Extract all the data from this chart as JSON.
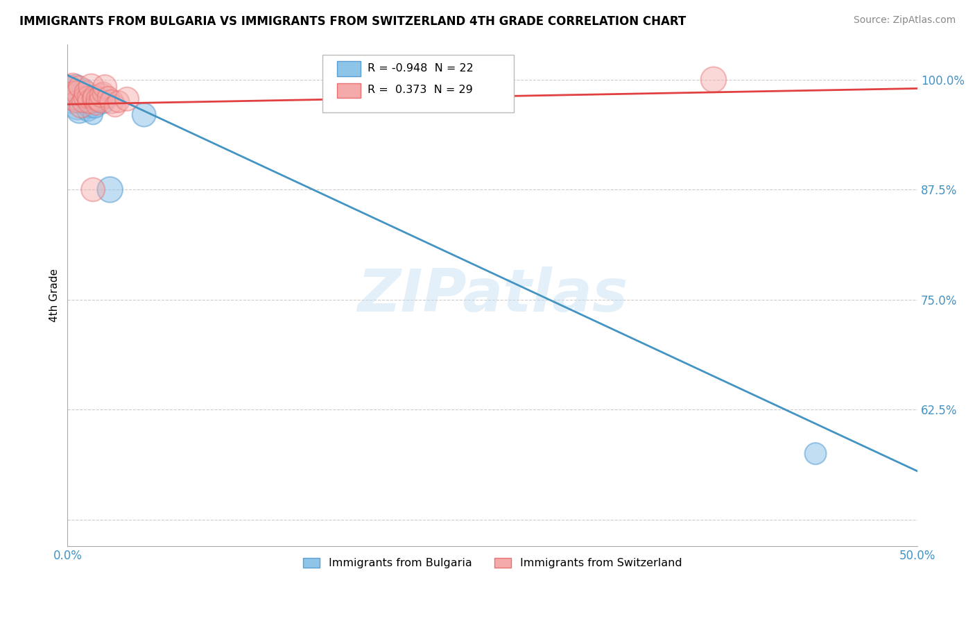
{
  "title": "IMMIGRANTS FROM BULGARIA VS IMMIGRANTS FROM SWITZERLAND 4TH GRADE CORRELATION CHART",
  "source": "Source: ZipAtlas.com",
  "ylabel": "4th Grade",
  "y_ticks": [
    0.5,
    0.625,
    0.75,
    0.875,
    1.0
  ],
  "y_tick_labels": [
    "",
    "62.5%",
    "75.0%",
    "87.5%",
    "100.0%"
  ],
  "xlim": [
    0.0,
    0.5
  ],
  "ylim": [
    0.47,
    1.04
  ],
  "legend_blue_label": "Immigrants from Bulgaria",
  "legend_pink_label": "Immigrants from Switzerland",
  "R_blue": -0.948,
  "N_blue": 22,
  "R_pink": 0.373,
  "N_pink": 29,
  "blue_color": "#8ec4e8",
  "pink_color": "#f4aaaa",
  "blue_edge_color": "#5a9fd4",
  "pink_edge_color": "#e87070",
  "blue_line_color": "#4393c3",
  "pink_line_color": "#e04040",
  "watermark": "ZIPatlas",
  "blue_line_x0": 0.0,
  "blue_line_y0": 1.005,
  "blue_line_x1": 0.5,
  "blue_line_y1": 0.555,
  "pink_line_x0": 0.0,
  "pink_line_y0": 0.972,
  "pink_line_x1": 0.5,
  "pink_line_y1": 0.99,
  "blue_scatter_x": [
    0.001,
    0.002,
    0.003,
    0.004,
    0.005,
    0.006,
    0.007,
    0.008,
    0.009,
    0.01,
    0.011,
    0.012,
    0.013,
    0.014,
    0.015,
    0.016,
    0.017,
    0.018,
    0.021,
    0.025,
    0.045,
    0.44
  ],
  "blue_scatter_y": [
    0.99,
    0.985,
    0.975,
    0.98,
    0.995,
    0.97,
    0.965,
    0.975,
    0.985,
    0.99,
    0.975,
    0.965,
    0.97,
    0.975,
    0.96,
    0.97,
    0.975,
    0.98,
    0.975,
    0.875,
    0.96,
    0.575
  ],
  "blue_scatter_sizes": [
    600,
    500,
    600,
    500,
    400,
    800,
    700,
    600,
    500,
    400,
    600,
    500,
    600,
    500,
    400,
    600,
    500,
    400,
    600,
    700,
    600,
    500
  ],
  "pink_scatter_x": [
    0.001,
    0.002,
    0.003,
    0.004,
    0.005,
    0.006,
    0.007,
    0.008,
    0.009,
    0.01,
    0.011,
    0.012,
    0.013,
    0.014,
    0.015,
    0.016,
    0.017,
    0.018,
    0.019,
    0.02,
    0.021,
    0.022,
    0.024,
    0.026,
    0.028,
    0.03,
    0.035,
    0.38,
    0.015
  ],
  "pink_scatter_y": [
    0.992,
    0.98,
    0.995,
    0.985,
    0.975,
    0.985,
    0.992,
    0.97,
    0.975,
    0.98,
    0.985,
    0.98,
    0.975,
    0.992,
    0.978,
    0.98,
    0.972,
    0.978,
    0.975,
    0.982,
    0.985,
    0.992,
    0.98,
    0.975,
    0.97,
    0.975,
    0.978,
    1.0,
    0.875
  ],
  "pink_scatter_sizes": [
    600,
    700,
    500,
    600,
    500,
    600,
    500,
    600,
    500,
    500,
    600,
    500,
    600,
    700,
    500,
    600,
    500,
    600,
    500,
    600,
    500,
    600,
    500,
    600,
    500,
    500,
    600,
    700,
    600
  ]
}
